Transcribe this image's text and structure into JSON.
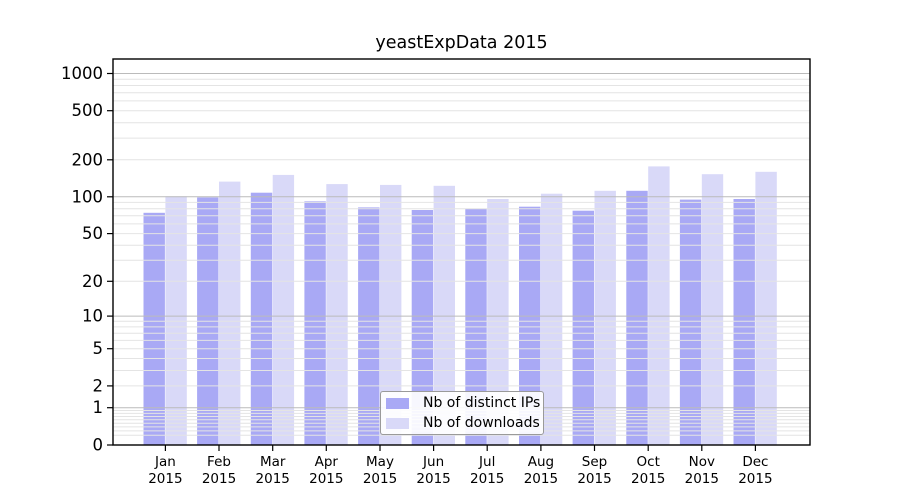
{
  "chart_data": {
    "type": "bar",
    "title": "yeastExpData 2015",
    "y_scale": "log1p",
    "ylim": [
      0,
      1000
    ],
    "grid": true,
    "legend_position": "bottom-center",
    "y_ticks": [
      0,
      1,
      2,
      5,
      10,
      20,
      50,
      100,
      200,
      500,
      1000
    ],
    "y_tick_labels": [
      "0",
      "1",
      "2",
      "5",
      "10",
      "20",
      "50",
      "100",
      "200",
      "500",
      "1000"
    ],
    "categories": [
      "Jan",
      "Feb",
      "Mar",
      "Apr",
      "May",
      "Jun",
      "Jul",
      "Aug",
      "Sep",
      "Oct",
      "Nov",
      "Dec"
    ],
    "year_label": "2015",
    "series": [
      {
        "name": "Nb of distinct IPs",
        "color": "#a9a9f5",
        "values": [
          74,
          99,
          108,
          92,
          82,
          78,
          80,
          83,
          77,
          112,
          95,
          96
        ]
      },
      {
        "name": "Nb of downloads",
        "color": "#d9d9f8",
        "values": [
          101,
          133,
          151,
          127,
          125,
          123,
          96,
          106,
          112,
          177,
          153,
          160
        ]
      }
    ],
    "colors": {
      "major_grid": "#bbbbbb",
      "minor_grid": "#e4e4e4",
      "axis": "#000000",
      "text": "#000000"
    }
  }
}
